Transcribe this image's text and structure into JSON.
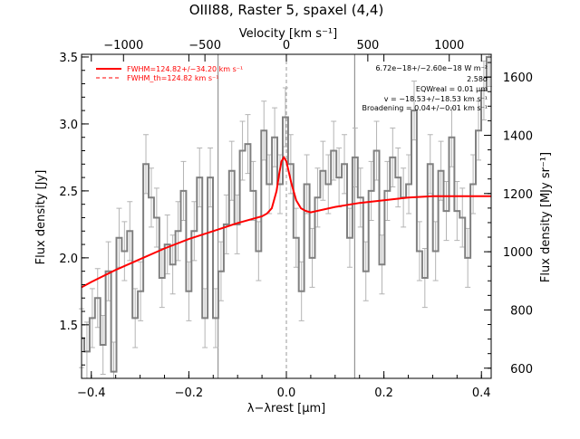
{
  "chart_data": {
    "type": "line",
    "title": "OIII88, Raster 5, spaxel (4,4)",
    "top_axis": {
      "label": "Velocity [km s⁻¹]",
      "ticks": [
        -1000,
        -500,
        0,
        500,
        1000
      ],
      "tick_labels": [
        "−1000",
        "−500",
        "0",
        "500",
        "1000"
      ]
    },
    "xlabel": "λ−λrest [μm]",
    "x_ticks": [
      -0.4,
      -0.2,
      0.0,
      0.2,
      0.4
    ],
    "x_tick_labels": [
      "−0.4",
      "−0.2",
      "0.0",
      "0.2",
      "0.4"
    ],
    "xlim": [
      -0.42,
      0.42
    ],
    "ylabel": "Flux density [Jy]",
    "y_ticks": [
      1.5,
      2.0,
      2.5,
      3.0,
      3.5
    ],
    "y_tick_labels": [
      "1.5",
      "2.0",
      "2.5",
      "3.0",
      "3.5"
    ],
    "ylim": [
      1.1,
      3.52
    ],
    "right_axis": {
      "label": "Flux density [MJy sr⁻¹]",
      "ticks": [
        600,
        800,
        1000,
        1200,
        1400,
        1600
      ],
      "tick_labels": [
        "600",
        "800",
        "1000",
        "1200",
        "1400",
        "1600"
      ],
      "map": [
        [
          600,
          1.176
        ],
        [
          1600,
          3.35
        ]
      ]
    },
    "vertical_lines": [
      -0.14,
      0.14
    ],
    "dashed_line_x": 0.0,
    "legend": {
      "placement": "top-left",
      "entries": [
        {
          "label": "FWHM=124.82+/−34.20 km s⁻¹",
          "style": "solid"
        },
        {
          "label": "FWHM_th=124.82 km s⁻¹",
          "style": "dashed"
        }
      ]
    },
    "annotations": [
      "6.72e−18+/−2.60e−18 W m⁻²",
      "2.58σ",
      "EQWreal = 0.01 μm",
      "v = −18.53+/−18.53 km s⁻¹",
      "Broadening = 0.04+/−0.01 km s⁻¹"
    ],
    "series": [
      {
        "style": "step",
        "color": "#808080",
        "x": [
          -0.42,
          -0.409,
          -0.398,
          -0.387,
          -0.376,
          -0.365,
          -0.354,
          -0.343,
          -0.332,
          -0.321,
          -0.31,
          -0.299,
          -0.288,
          -0.277,
          -0.266,
          -0.255,
          -0.244,
          -0.233,
          -0.222,
          -0.211,
          -0.2,
          -0.189,
          -0.178,
          -0.167,
          -0.156,
          -0.145,
          -0.134,
          -0.123,
          -0.112,
          -0.101,
          -0.09,
          -0.079,
          -0.068,
          -0.057,
          -0.046,
          -0.035,
          -0.024,
          -0.013,
          -0.002,
          0.009,
          0.02,
          0.031,
          0.042,
          0.053,
          0.064,
          0.075,
          0.086,
          0.097,
          0.108,
          0.119,
          0.13,
          0.141,
          0.152,
          0.163,
          0.174,
          0.185,
          0.196,
          0.207,
          0.218,
          0.229,
          0.24,
          0.251,
          0.262,
          0.273,
          0.284,
          0.295,
          0.306,
          0.317,
          0.328,
          0.339,
          0.35,
          0.361,
          0.372,
          0.383,
          0.394,
          0.405,
          0.416
        ],
        "values": [
          1.4,
          1.3,
          1.55,
          1.7,
          1.35,
          1.9,
          1.15,
          2.15,
          2.05,
          2.2,
          1.55,
          1.75,
          2.7,
          2.45,
          2.3,
          1.85,
          2.1,
          1.95,
          2.2,
          2.5,
          1.75,
          2.2,
          2.6,
          1.55,
          2.6,
          1.55,
          1.9,
          2.25,
          2.65,
          2.25,
          2.8,
          2.85,
          2.5,
          2.05,
          2.95,
          2.55,
          2.9,
          2.55,
          3.05,
          2.7,
          2.15,
          1.75,
          2.55,
          2.0,
          2.45,
          2.65,
          2.55,
          2.8,
          2.6,
          2.7,
          2.15,
          2.75,
          2.45,
          1.9,
          2.5,
          2.8,
          1.95,
          2.5,
          2.75,
          2.6,
          2.45,
          2.55,
          3.1,
          2.05,
          1.85,
          2.7,
          2.05,
          2.65,
          2.35,
          2.9,
          2.35,
          2.3,
          2.0,
          2.55,
          2.95,
          3.25,
          3.5
        ]
      },
      {
        "name": "FWHM=124.82+/−34.20 km s⁻¹",
        "style": "line",
        "color": "#ff0000",
        "x": [
          -0.42,
          -0.4,
          -0.35,
          -0.3,
          -0.25,
          -0.2,
          -0.15,
          -0.1,
          -0.05,
          -0.04,
          -0.03,
          -0.02,
          -0.015,
          -0.01,
          -0.005,
          0.0,
          0.01,
          0.02,
          0.03,
          0.04,
          0.05,
          0.1,
          0.15,
          0.2,
          0.25,
          0.3,
          0.35,
          0.4,
          0.42
        ],
        "values": [
          1.78,
          1.82,
          1.91,
          1.99,
          2.07,
          2.14,
          2.2,
          2.26,
          2.31,
          2.33,
          2.37,
          2.5,
          2.62,
          2.72,
          2.75,
          2.72,
          2.56,
          2.43,
          2.37,
          2.35,
          2.34,
          2.38,
          2.41,
          2.43,
          2.45,
          2.46,
          2.46,
          2.46,
          2.46
        ]
      }
    ]
  }
}
